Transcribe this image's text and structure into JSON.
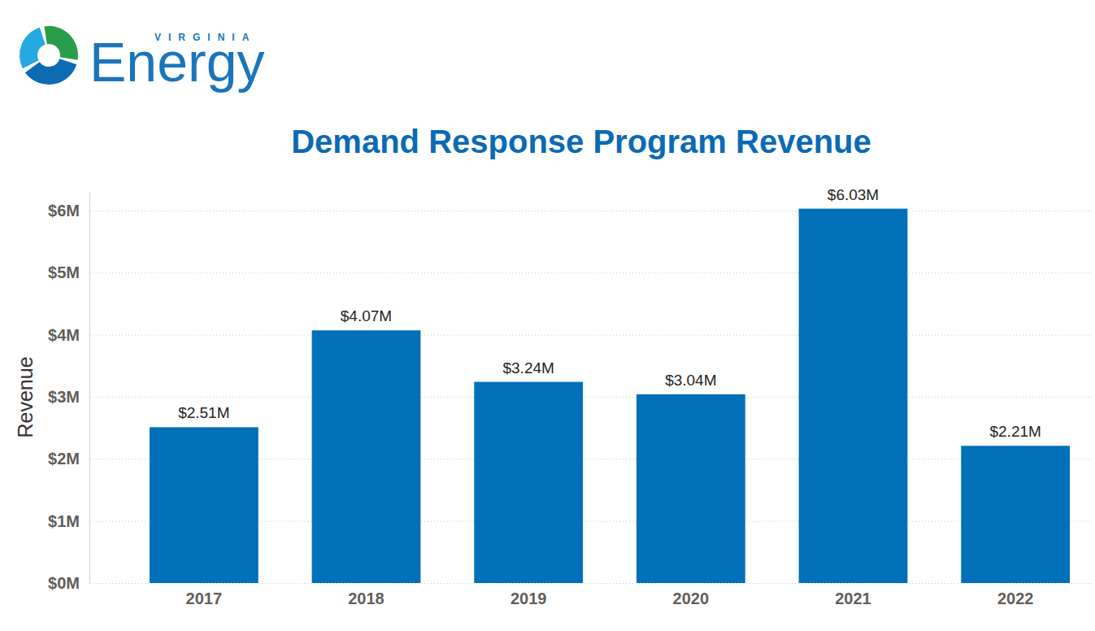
{
  "logo": {
    "subtext": "VIRGINIA",
    "text": "Energy"
  },
  "chart_data": {
    "type": "bar",
    "title": "Demand Response Program Revenue",
    "y_label": "Revenue",
    "categories": [
      "2017",
      "2018",
      "2019",
      "2020",
      "2021",
      "2022"
    ],
    "values": [
      2.51,
      4.07,
      3.24,
      3.04,
      6.03,
      2.21
    ],
    "value_labels": [
      "$2.51M",
      "$4.07M",
      "$3.24M",
      "$3.04M",
      "$6.03M",
      "$2.21M"
    ],
    "color": "#0070b8",
    "ylim": [
      0,
      6.3
    ],
    "yticks": [
      {
        "value": 0,
        "label": "$0M"
      },
      {
        "value": 1,
        "label": "$1M"
      },
      {
        "value": 2,
        "label": "$2M"
      },
      {
        "value": 3,
        "label": "$3M"
      },
      {
        "value": 4,
        "label": "$4M"
      },
      {
        "value": 5,
        "label": "$5M"
      },
      {
        "value": 6,
        "label": "$6M"
      }
    ],
    "grid": true,
    "data_labels": true
  }
}
